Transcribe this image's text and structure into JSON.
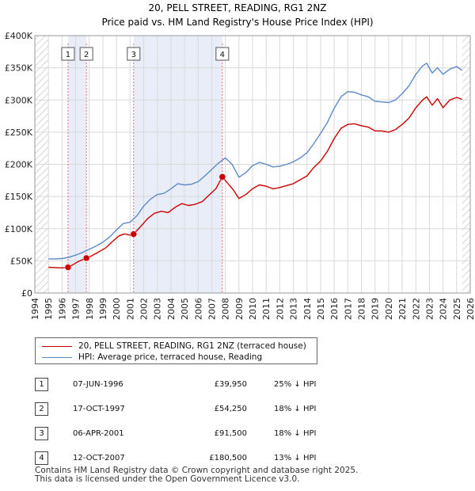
{
  "title_line1": "20, PELL STREET, READING, RG1 2NZ",
  "title_line2": "Price paid vs. HM Land Registry's House Price Index (HPI)",
  "chart_data": {
    "type": "line",
    "title": "20, PELL STREET, READING, RG1 2NZ",
    "subtitle": "Price paid vs. HM Land Registry's House Price Index (HPI)",
    "xlabel": "",
    "ylabel": "",
    "xlim": [
      1994,
      2026
    ],
    "ylim": [
      0,
      400000
    ],
    "y_ticks": [
      0,
      50000,
      100000,
      150000,
      200000,
      250000,
      300000,
      350000,
      400000
    ],
    "y_tick_labels": [
      "£0",
      "£50K",
      "£100K",
      "£150K",
      "£200K",
      "£250K",
      "£300K",
      "£350K",
      "£400K"
    ],
    "x_ticks": [
      1994,
      1995,
      1996,
      1997,
      1998,
      1999,
      2000,
      2001,
      2002,
      2003,
      2004,
      2005,
      2006,
      2007,
      2008,
      2009,
      2010,
      2011,
      2012,
      2013,
      2014,
      2015,
      2016,
      2017,
      2018,
      2019,
      2020,
      2021,
      2022,
      2023,
      2024,
      2025,
      2026
    ],
    "grid": true,
    "data_start": 1995.0,
    "data_end": 2025.4,
    "shaded_regions": [
      [
        1996.44,
        1997.79
      ],
      [
        2001.26,
        2007.78
      ]
    ],
    "hatched_regions": [
      [
        1994,
        1995.0
      ],
      [
        2025.4,
        2026
      ]
    ],
    "series": [
      {
        "name": "20, PELL STREET, READING, RG1 2NZ (terraced house)",
        "color": "#cc0000",
        "points": [
          [
            1995.0,
            40000
          ],
          [
            1995.5,
            39500
          ],
          [
            1996.0,
            39000
          ],
          [
            1996.44,
            39950
          ],
          [
            1996.8,
            44000
          ],
          [
            1997.2,
            49000
          ],
          [
            1997.79,
            54250
          ],
          [
            1998.2,
            58000
          ],
          [
            1998.7,
            64000
          ],
          [
            1999.2,
            70000
          ],
          [
            1999.7,
            80000
          ],
          [
            2000.2,
            89000
          ],
          [
            2000.6,
            92000
          ],
          [
            2001.0,
            90000
          ],
          [
            2001.26,
            91500
          ],
          [
            2001.8,
            104000
          ],
          [
            2002.3,
            116000
          ],
          [
            2002.8,
            124000
          ],
          [
            2003.3,
            127000
          ],
          [
            2003.8,
            125000
          ],
          [
            2004.3,
            133000
          ],
          [
            2004.8,
            139000
          ],
          [
            2005.3,
            136000
          ],
          [
            2005.8,
            138000
          ],
          [
            2006.3,
            142000
          ],
          [
            2006.8,
            152000
          ],
          [
            2007.3,
            162000
          ],
          [
            2007.78,
            180500
          ],
          [
            2008.2,
            170000
          ],
          [
            2008.6,
            160000
          ],
          [
            2009.0,
            147000
          ],
          [
            2009.5,
            153000
          ],
          [
            2010.0,
            162000
          ],
          [
            2010.5,
            168000
          ],
          [
            2011.0,
            166000
          ],
          [
            2011.5,
            162000
          ],
          [
            2012.0,
            164000
          ],
          [
            2012.5,
            167000
          ],
          [
            2013.0,
            170000
          ],
          [
            2013.5,
            176000
          ],
          [
            2014.0,
            182000
          ],
          [
            2014.5,
            195000
          ],
          [
            2015.0,
            205000
          ],
          [
            2015.5,
            220000
          ],
          [
            2016.0,
            240000
          ],
          [
            2016.5,
            256000
          ],
          [
            2017.0,
            262000
          ],
          [
            2017.5,
            263000
          ],
          [
            2018.0,
            260000
          ],
          [
            2018.5,
            258000
          ],
          [
            2019.0,
            252000
          ],
          [
            2019.5,
            252000
          ],
          [
            2020.0,
            250000
          ],
          [
            2020.5,
            254000
          ],
          [
            2021.0,
            262000
          ],
          [
            2021.5,
            272000
          ],
          [
            2022.0,
            288000
          ],
          [
            2022.5,
            300000
          ],
          [
            2022.8,
            305000
          ],
          [
            2023.2,
            292000
          ],
          [
            2023.6,
            302000
          ],
          [
            2024.0,
            288000
          ],
          [
            2024.5,
            300000
          ],
          [
            2025.0,
            304000
          ],
          [
            2025.4,
            301000
          ]
        ]
      },
      {
        "name": "HPI: Average price, terraced house, Reading",
        "color": "#5b8ac7",
        "points": [
          [
            1995.0,
            53000
          ],
          [
            1995.5,
            53000
          ],
          [
            1996.0,
            53500
          ],
          [
            1996.5,
            55500
          ],
          [
            1997.0,
            59000
          ],
          [
            1997.5,
            63000
          ],
          [
            1998.0,
            68000
          ],
          [
            1998.5,
            73000
          ],
          [
            1999.0,
            79000
          ],
          [
            1999.5,
            87000
          ],
          [
            2000.0,
            98000
          ],
          [
            2000.5,
            108000
          ],
          [
            2001.0,
            110000
          ],
          [
            2001.5,
            120000
          ],
          [
            2002.0,
            135000
          ],
          [
            2002.5,
            146000
          ],
          [
            2003.0,
            153000
          ],
          [
            2003.5,
            155000
          ],
          [
            2004.0,
            162000
          ],
          [
            2004.5,
            170000
          ],
          [
            2005.0,
            168000
          ],
          [
            2005.5,
            169000
          ],
          [
            2006.0,
            173000
          ],
          [
            2006.5,
            182000
          ],
          [
            2007.0,
            192000
          ],
          [
            2007.5,
            202000
          ],
          [
            2008.0,
            210000
          ],
          [
            2008.5,
            200000
          ],
          [
            2009.0,
            180000
          ],
          [
            2009.5,
            187000
          ],
          [
            2010.0,
            198000
          ],
          [
            2010.5,
            203000
          ],
          [
            2011.0,
            200000
          ],
          [
            2011.5,
            196000
          ],
          [
            2012.0,
            197000
          ],
          [
            2012.5,
            200000
          ],
          [
            2013.0,
            204000
          ],
          [
            2013.5,
            210000
          ],
          [
            2014.0,
            218000
          ],
          [
            2014.5,
            232000
          ],
          [
            2015.0,
            248000
          ],
          [
            2015.5,
            265000
          ],
          [
            2016.0,
            287000
          ],
          [
            2016.5,
            305000
          ],
          [
            2017.0,
            313000
          ],
          [
            2017.5,
            312000
          ],
          [
            2018.0,
            308000
          ],
          [
            2018.5,
            305000
          ],
          [
            2019.0,
            298000
          ],
          [
            2019.5,
            297000
          ],
          [
            2020.0,
            296000
          ],
          [
            2020.5,
            300000
          ],
          [
            2021.0,
            310000
          ],
          [
            2021.5,
            322000
          ],
          [
            2022.0,
            340000
          ],
          [
            2022.5,
            353000
          ],
          [
            2022.8,
            357000
          ],
          [
            2023.2,
            342000
          ],
          [
            2023.6,
            350000
          ],
          [
            2024.0,
            340000
          ],
          [
            2024.5,
            348000
          ],
          [
            2025.0,
            352000
          ],
          [
            2025.4,
            346000
          ]
        ]
      }
    ],
    "sale_markers": [
      {
        "label": "1",
        "x": 1996.44,
        "value": 39950
      },
      {
        "label": "2",
        "x": 1997.79,
        "value": 54250
      },
      {
        "label": "3",
        "x": 2001.26,
        "value": 91500
      },
      {
        "label": "4",
        "x": 2007.78,
        "value": 180500
      }
    ]
  },
  "legend": {
    "entries": [
      {
        "label": "20, PELL STREET, READING, RG1 2NZ (terraced house)",
        "color": "#cc0000"
      },
      {
        "label": "HPI: Average price, terraced house, Reading",
        "color": "#5b8ac7"
      }
    ]
  },
  "sales": [
    {
      "num": "1",
      "date": "07-JUN-1996",
      "price": "£39,950",
      "hpi": "25% ↓ HPI"
    },
    {
      "num": "2",
      "date": "17-OCT-1997",
      "price": "£54,250",
      "hpi": "18% ↓ HPI"
    },
    {
      "num": "3",
      "date": "06-APR-2001",
      "price": "£91,500",
      "hpi": "18% ↓ HPI"
    },
    {
      "num": "4",
      "date": "12-OCT-2007",
      "price": "£180,500",
      "hpi": "13% ↓ HPI"
    }
  ],
  "footer": {
    "line1": "Contains HM Land Registry data © Crown copyright and database right 2025.",
    "line2": "This data is licensed under the Open Government Licence v3.0."
  }
}
